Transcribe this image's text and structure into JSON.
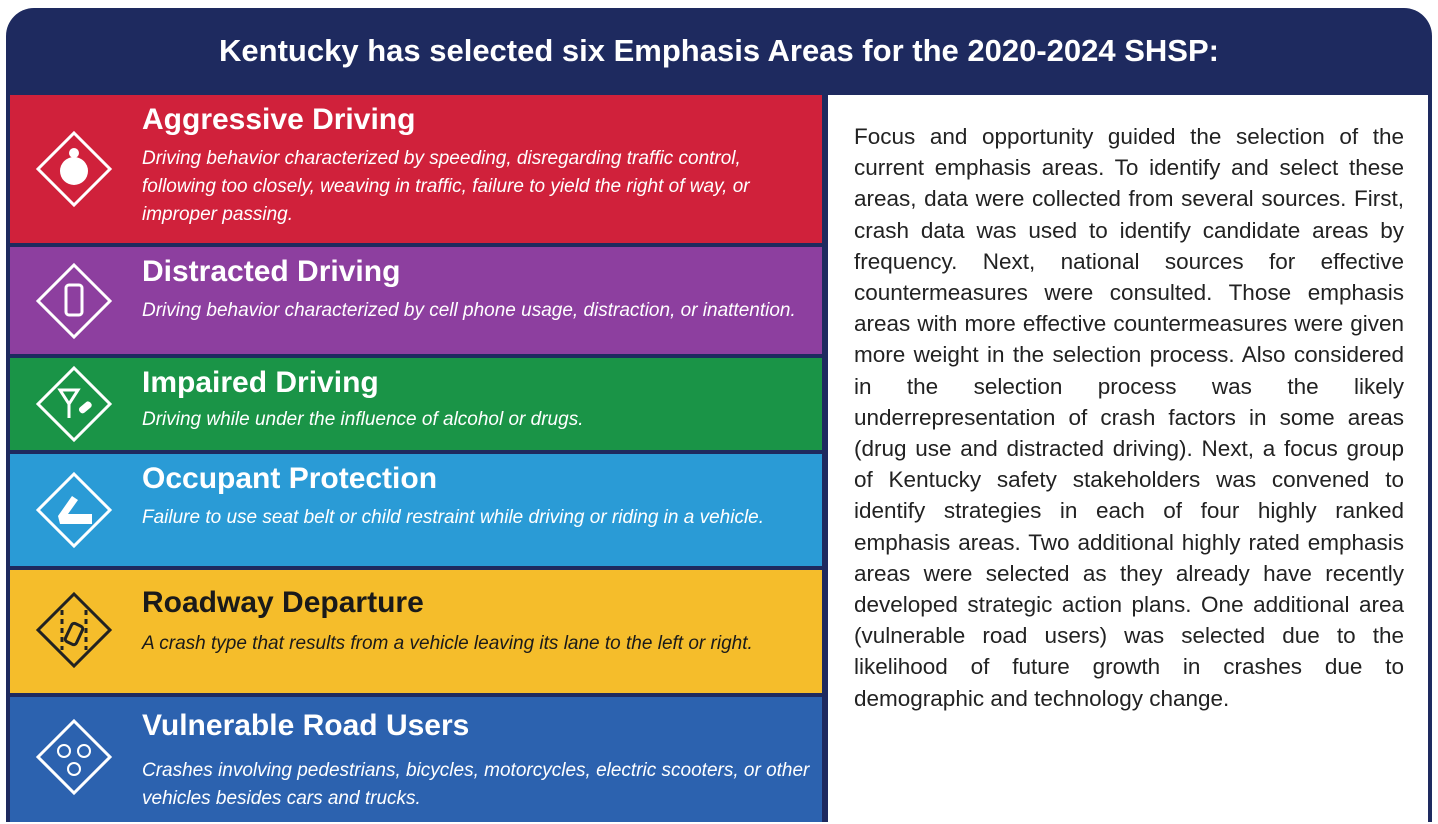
{
  "header": {
    "title": "Kentucky has selected six Emphasis Areas for the 2020-2024 SHSP:"
  },
  "areas": [
    {
      "title": "Aggressive Driving",
      "description": "Driving behavior characterized by speeding, disregarding traffic control, following too closely, weaving in traffic, failure to yield the right of way, or improper passing."
    },
    {
      "title": "Distracted Driving",
      "description": "Driving behavior characterized by cell phone usage, distraction, or inattention."
    },
    {
      "title": "Impaired Driving",
      "description": "Driving while under the influence of alcohol or drugs."
    },
    {
      "title": "Occupant Protection",
      "description": "Failure to use seat belt or child restraint while driving or riding in a vehicle."
    },
    {
      "title": "Roadway Departure",
      "description": "A crash type that results from a vehicle leaving its lane to the left or right."
    },
    {
      "title": "Vulnerable Road Users",
      "description": "Crashes involving pedestrians, bicycles, motorcycles, electric scooters, or other vehicles besides cars and trucks."
    }
  ],
  "body": {
    "text": "Focus and opportunity guided the selection of the current emphasis areas. To identify and select these areas, data were collected from several sources. First, crash data was used to identify candidate areas by frequency. Next, national sources for effective countermeasures were consulted. Those emphasis areas with more effective countermeasures were given more weight in the selection process. Also considered in the selection process was the likely underrepresentation of crash factors in some areas (drug use and distracted driving). Next, a focus group of Kentucky safety stakeholders was convened to identify strategies in each of four highly ranked emphasis areas. Two additional highly rated emphasis areas were selected as they already have recently developed strategic action plans. One additional area (vulnerable road users) was selected due to the likelihood of future growth in crashes due to demographic and technology change."
  }
}
